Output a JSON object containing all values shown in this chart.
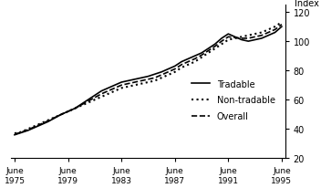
{
  "title": "",
  "ylabel": "Index",
  "ylim": [
    20,
    125
  ],
  "yticks": [
    20,
    40,
    60,
    80,
    100,
    120
  ],
  "xlim": [
    1975.25,
    1995.75
  ],
  "xticks": [
    1975.5,
    1979.5,
    1983.5,
    1987.5,
    1991.5,
    1995.5
  ],
  "xticklabels": [
    "June\n1975",
    "June\n1979",
    "June\n1983",
    "June\n1987",
    "June\n1991",
    "June\n1995"
  ],
  "background_color": "#ffffff",
  "line_color": "#000000",
  "legend_labels": [
    "Tradable",
    "Non-tradable",
    "Overall"
  ],
  "legend_styles": [
    "solid",
    "dotted",
    "dashed"
  ],
  "tradable": {
    "years": [
      1975.5,
      1976.0,
      1976.5,
      1977.0,
      1977.5,
      1978.0,
      1978.5,
      1979.0,
      1979.5,
      1980.0,
      1980.5,
      1981.0,
      1981.5,
      1982.0,
      1982.5,
      1983.0,
      1983.5,
      1984.0,
      1984.5,
      1985.0,
      1985.5,
      1986.0,
      1986.5,
      1987.0,
      1987.5,
      1988.0,
      1988.5,
      1989.0,
      1989.5,
      1990.0,
      1990.5,
      1991.0,
      1991.5,
      1992.0,
      1992.5,
      1993.0,
      1993.5,
      1994.0,
      1994.5,
      1995.0,
      1995.5
    ],
    "values": [
      36,
      37.5,
      39,
      41,
      43,
      45,
      47.5,
      50,
      52,
      54,
      57,
      60,
      63,
      66,
      68,
      70,
      72,
      73,
      74,
      75,
      76,
      77.5,
      79,
      81,
      83,
      86,
      88,
      90,
      92,
      95,
      98,
      102,
      105,
      103,
      101,
      100,
      101,
      102,
      104,
      106,
      110
    ],
    "style": "solid",
    "linewidth": 1.2
  },
  "nontradable": {
    "years": [
      1975.5,
      1976.0,
      1976.5,
      1977.0,
      1977.5,
      1978.0,
      1978.5,
      1979.0,
      1979.5,
      1980.0,
      1980.5,
      1981.0,
      1981.5,
      1982.0,
      1982.5,
      1983.0,
      1983.5,
      1984.0,
      1984.5,
      1985.0,
      1985.5,
      1986.0,
      1986.5,
      1987.0,
      1987.5,
      1988.0,
      1988.5,
      1989.0,
      1989.5,
      1990.0,
      1990.5,
      1991.0,
      1991.5,
      1992.0,
      1992.5,
      1993.0,
      1993.5,
      1994.0,
      1994.5,
      1995.0,
      1995.5
    ],
    "values": [
      37,
      38,
      40,
      42,
      44,
      46,
      48,
      50,
      52,
      54,
      56,
      58,
      60,
      62,
      64,
      66,
      68,
      69,
      70,
      71,
      72,
      73,
      75,
      77,
      79,
      82,
      84,
      86,
      89,
      92,
      95,
      98,
      101,
      102,
      103,
      104,
      105,
      106,
      108,
      110,
      113
    ],
    "style": "dotted",
    "linewidth": 1.5
  },
  "overall": {
    "years": [
      1975.5,
      1976.0,
      1976.5,
      1977.0,
      1977.5,
      1978.0,
      1978.5,
      1979.0,
      1979.5,
      1980.0,
      1980.5,
      1981.0,
      1981.5,
      1982.0,
      1982.5,
      1983.0,
      1983.5,
      1984.0,
      1984.5,
      1985.0,
      1985.5,
      1986.0,
      1986.5,
      1987.0,
      1987.5,
      1988.0,
      1988.5,
      1989.0,
      1989.5,
      1990.0,
      1990.5,
      1991.0,
      1991.5,
      1992.0,
      1992.5,
      1993.0,
      1993.5,
      1994.0,
      1994.5,
      1995.0,
      1995.5
    ],
    "values": [
      36.5,
      37.8,
      39.5,
      41.5,
      43.5,
      45.5,
      47.8,
      50,
      52,
      54,
      56.5,
      59,
      61.5,
      64,
      66,
      68,
      70,
      71,
      72,
      73,
      74,
      75,
      77,
      79,
      81,
      84,
      86,
      88,
      90.5,
      93.5,
      96.5,
      100,
      103,
      102.5,
      102,
      102,
      103,
      104,
      106,
      108,
      111.5
    ],
    "style": "dashed",
    "linewidth": 1.2
  }
}
